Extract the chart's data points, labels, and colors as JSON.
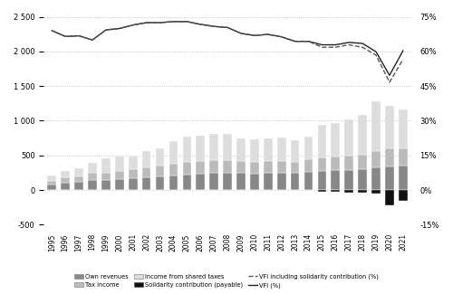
{
  "years": [
    1995,
    1996,
    1997,
    1998,
    1999,
    2000,
    2001,
    2002,
    2003,
    2004,
    2005,
    2006,
    2007,
    2008,
    2009,
    2010,
    2011,
    2012,
    2013,
    2014,
    2015,
    2016,
    2017,
    2018,
    2019,
    2020,
    2021
  ],
  "own_revenues": [
    75,
    105,
    115,
    145,
    150,
    160,
    170,
    185,
    200,
    215,
    225,
    235,
    245,
    250,
    245,
    240,
    245,
    250,
    245,
    265,
    280,
    285,
    290,
    295,
    330,
    345,
    350
  ],
  "tax_income": [
    55,
    75,
    85,
    105,
    105,
    115,
    125,
    145,
    150,
    165,
    175,
    180,
    185,
    185,
    175,
    170,
    175,
    175,
    165,
    180,
    195,
    200,
    205,
    210,
    235,
    250,
    250
  ],
  "shared_taxes": [
    80,
    90,
    110,
    140,
    200,
    205,
    195,
    235,
    250,
    320,
    365,
    365,
    375,
    380,
    320,
    320,
    325,
    330,
    310,
    325,
    460,
    480,
    530,
    580,
    720,
    615,
    565
  ],
  "solidarity": [
    0,
    0,
    0,
    0,
    0,
    0,
    0,
    0,
    0,
    0,
    0,
    0,
    0,
    0,
    0,
    0,
    0,
    0,
    0,
    0,
    -30,
    -30,
    -35,
    -40,
    -55,
    -220,
    -155
  ],
  "vfi_left": [
    2300,
    2215,
    2225,
    2165,
    2310,
    2330,
    2380,
    2415,
    2415,
    2430,
    2430,
    2390,
    2360,
    2345,
    2260,
    2230,
    2245,
    2210,
    2145,
    2145,
    2095,
    2095,
    2130,
    2115,
    1995,
    1655,
    2010
  ],
  "vfi_sol_left": [
    2300,
    2215,
    2225,
    2165,
    2310,
    2330,
    2380,
    2415,
    2415,
    2430,
    2430,
    2390,
    2360,
    2345,
    2260,
    2230,
    2245,
    2210,
    2145,
    2145,
    2060,
    2060,
    2095,
    2060,
    1945,
    1555,
    1885
  ],
  "bar_color_own": "#888888",
  "bar_color_tax": "#bbbbbb",
  "bar_color_shared": "#dddddd",
  "bar_color_solidarity": "#111111",
  "line_color_vfi": "#222222",
  "line_color_vfi_sol": "#555555",
  "ylim_left": [
    -500,
    2500
  ],
  "ylim_right": [
    -15,
    75
  ],
  "yticks_left": [
    -500,
    0,
    500,
    1000,
    1500,
    2000,
    2500
  ],
  "yticks_right": [
    -15,
    0,
    15,
    30,
    45,
    60,
    75
  ],
  "ytick_labels_left": [
    "-500",
    "0",
    "500",
    "1 000",
    "1 500",
    "2 000",
    "2 500"
  ],
  "ytick_labels_right": [
    "-15%",
    "0%",
    "15%",
    "30%",
    "45%",
    "60%",
    "75%"
  ]
}
